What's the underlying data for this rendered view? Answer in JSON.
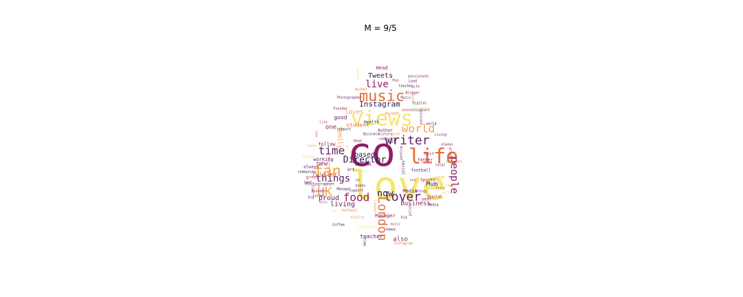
{
  "chart_data": {
    "type": "wordcloud",
    "title": "M = 9/5",
    "mask_shape": "spade",
    "colormap": [
      "#f4e66b",
      "#f4a340",
      "#e0703a",
      "#b8386a",
      "#8e1f64",
      "#5e1f63",
      "#2e1a47"
    ],
    "words": [
      {
        "text": "love",
        "rank": 1
      },
      {
        "text": "co",
        "rank": 2
      },
      {
        "text": "views",
        "rank": 3
      },
      {
        "text": "life",
        "rank": 4
      },
      {
        "text": "music",
        "rank": 5
      },
      {
        "text": "fan",
        "rank": 6
      },
      {
        "text": "writer",
        "rank": 7
      },
      {
        "text": "lover",
        "rank": 8
      },
      {
        "text": "London",
        "rank": 9
      },
      {
        "text": "UK",
        "rank": 10
      },
      {
        "text": "world",
        "rank": 11
      },
      {
        "text": "time",
        "rank": 12
      },
      {
        "text": "food",
        "rank": 13
      },
      {
        "text": "Director",
        "rank": 14
      },
      {
        "text": "live",
        "rank": 15
      },
      {
        "text": "things",
        "rank": 16
      },
      {
        "text": "people",
        "rank": 17
      },
      {
        "text": "now",
        "rank": 18
      },
      {
        "text": "Instagram",
        "rank": 19
      },
      {
        "text": "Tweets",
        "rank": 20
      },
      {
        "text": "based",
        "rank": 21
      },
      {
        "text": "work",
        "rank": 22
      },
      {
        "text": "new",
        "rank": 23
      },
      {
        "text": "proud",
        "rank": 24
      },
      {
        "text": "living",
        "rank": 25
      },
      {
        "text": "Business",
        "rank": 26
      },
      {
        "text": "Twitter",
        "rank": 27
      },
      {
        "text": "Mum",
        "rank": 28
      },
      {
        "text": "also",
        "rank": 29
      },
      {
        "text": "one",
        "rank": 30
      },
      {
        "text": "family",
        "rank": 31
      },
      {
        "text": "loves",
        "rank": 32
      },
      {
        "text": "good",
        "rank": 33
      },
      {
        "text": "student",
        "rank": 34
      },
      {
        "text": "teacher",
        "rank": 35
      },
      {
        "text": "Media",
        "rank": 36
      },
      {
        "text": "Manager",
        "rank": 37
      },
      {
        "text": "working",
        "rank": 38
      },
      {
        "text": "always",
        "rank": 39
      },
      {
        "text": "Head",
        "rank": 40
      },
      {
        "text": "Health",
        "rank": 41
      },
      {
        "text": "Author",
        "rank": 42
      },
      {
        "text": "football",
        "rank": 43
      },
      {
        "text": "Sports",
        "rank": 44
      },
      {
        "text": "best",
        "rank": 45
      },
      {
        "text": "follow",
        "rank": 46
      },
      {
        "text": "art",
        "rank": 47
      },
      {
        "text": "news",
        "rank": 48
      },
      {
        "text": "Photographer",
        "rank": 49
      },
      {
        "text": "social",
        "rank": 50
      },
      {
        "text": "father",
        "rank": 51
      },
      {
        "text": "free",
        "rank": 52
      },
      {
        "text": "great",
        "rank": 53
      },
      {
        "text": "year",
        "rank": 54
      },
      {
        "text": "Coffee",
        "rank": 55
      },
      {
        "text": "books",
        "rank": 56
      },
      {
        "text": "digital",
        "rank": 57
      },
      {
        "text": "local",
        "rank": 58
      },
      {
        "text": "history",
        "rank": 59
      },
      {
        "text": "community",
        "rank": 60
      },
      {
        "text": "support",
        "rank": 61
      },
      {
        "text": "Coach",
        "rank": 62
      },
      {
        "text": "Founder",
        "rank": 63
      },
      {
        "text": "big",
        "rank": 64
      },
      {
        "text": "wife",
        "rank": 65
      },
      {
        "text": "Music",
        "rank": 66
      },
      {
        "text": "Opinions",
        "rank": 67
      },
      {
        "text": "Account",
        "rank": 68
      },
      {
        "text": "Digital",
        "rank": 69
      },
      {
        "text": "Blogger",
        "rank": 70
      },
      {
        "text": "consultant",
        "rank": 71
      },
      {
        "text": "Lead",
        "rank": 72
      },
      {
        "text": "passionate",
        "rank": 73
      }
    ]
  }
}
